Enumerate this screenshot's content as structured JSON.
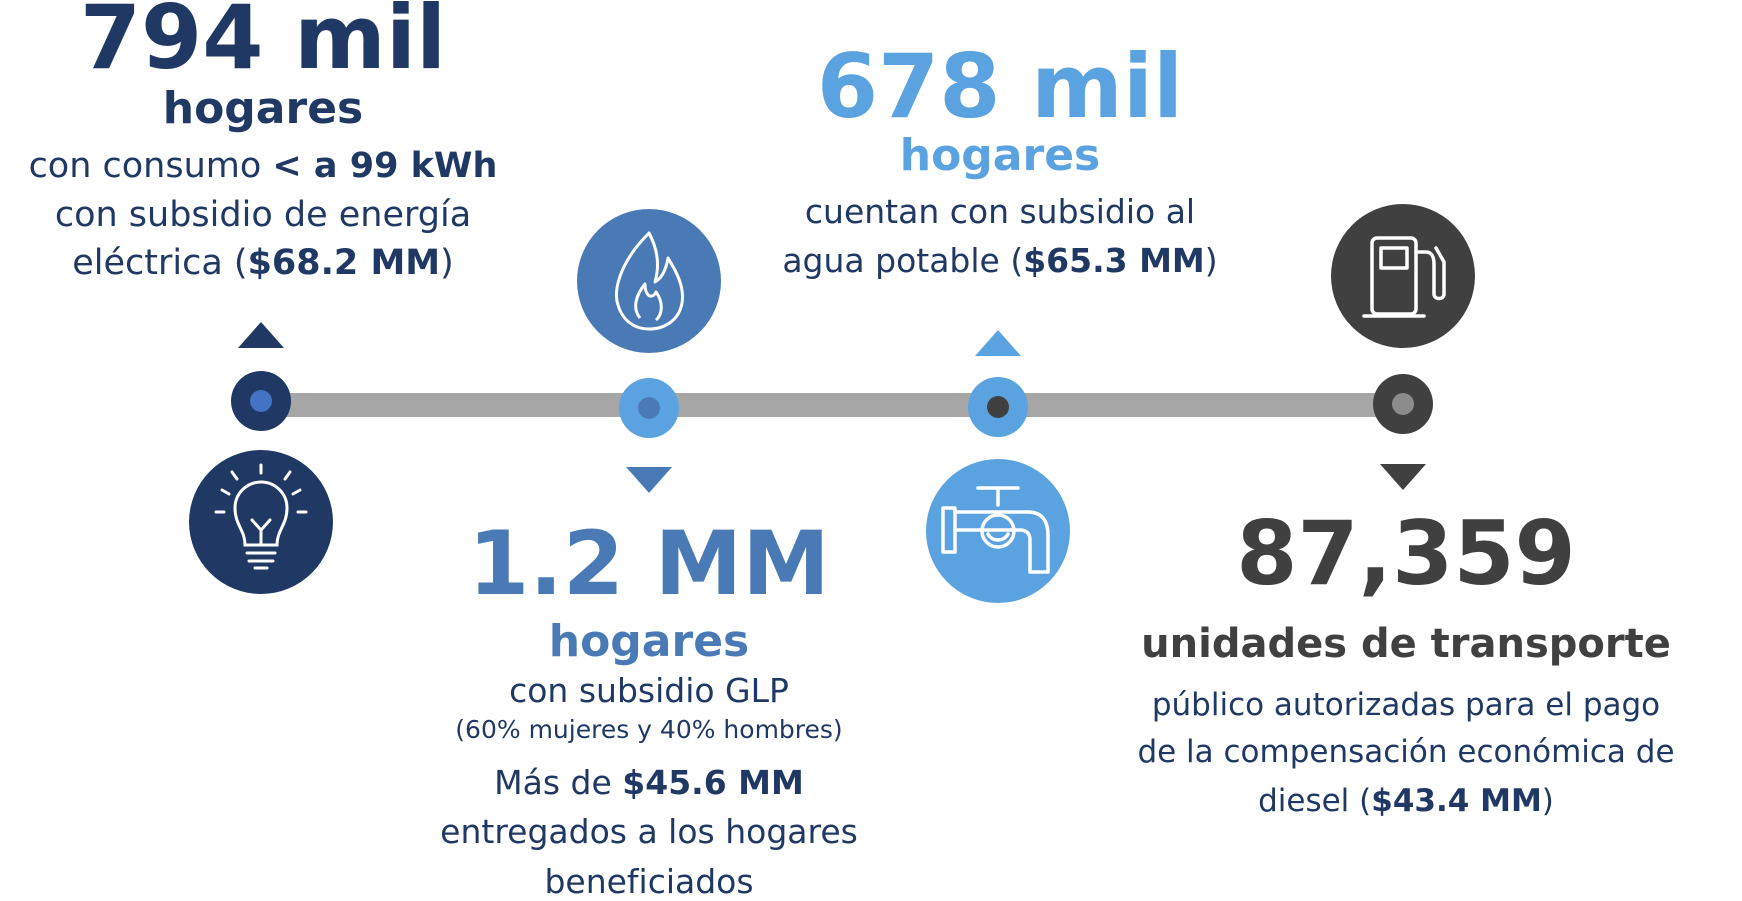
{
  "items": [
    {
      "headline": "794 mil",
      "unit": "hogares",
      "lines": [
        [
          "con consumo ",
          "< a 99 kWh"
        ],
        [
          "con subsidio de energía"
        ],
        [
          "eléctrica (",
          "$68.2 MM",
          ")"
        ]
      ]
    },
    {
      "headline": "1.2 MM",
      "unit": "hogares",
      "lines": [
        [
          "con subsidio GLP"
        ],
        [
          "(60% mujeres y 40% hombres)"
        ],
        [
          "Más de ",
          "$45.6 MM"
        ],
        [
          "entregados a los hogares"
        ],
        [
          "beneficiados"
        ]
      ]
    },
    {
      "headline": "678 mil",
      "unit": "hogares",
      "lines": [
        [
          "cuentan con subsidio al"
        ],
        [
          "agua potable (",
          "$65.3 MM",
          ")"
        ]
      ]
    },
    {
      "headline": "87,359",
      "unit": "unidades de transporte",
      "lines": [
        [
          "público autorizadas para el pago"
        ],
        [
          "de la compensación económica de"
        ],
        [
          "diesel (",
          "$43.4 MM",
          ")"
        ]
      ]
    }
  ]
}
